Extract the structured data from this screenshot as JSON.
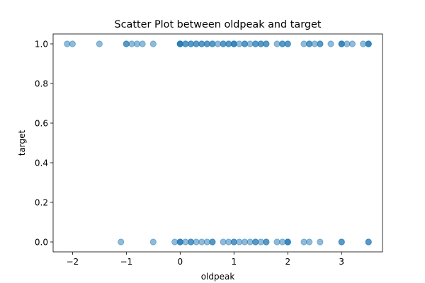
{
  "chart_data": {
    "type": "scatter",
    "title": "Scatter Plot between oldpeak and target",
    "xlabel": "oldpeak",
    "ylabel": "target",
    "xlim": [
      -2.36,
      3.76
    ],
    "ylim": [
      -0.05,
      1.05
    ],
    "xticks": [
      -2,
      -1,
      0,
      1,
      2,
      3
    ],
    "yticks": [
      0.0,
      0.2,
      0.4,
      0.6,
      0.8,
      1.0
    ],
    "ytick_labels": [
      "0.0",
      "0.2",
      "0.4",
      "0.6",
      "0.8",
      "1.0"
    ],
    "grid": false,
    "legend": false,
    "marker_color": "#1f77b4",
    "marker_alpha": 0.5,
    "series": [
      {
        "target": 1,
        "x": [
          -2.1,
          -2.0,
          -1.5,
          -1.0,
          -1.0,
          -0.9,
          -0.8,
          -0.7,
          -0.5,
          0.0,
          0.0,
          0.0,
          0.0,
          0.1,
          0.1,
          0.2,
          0.2,
          0.3,
          0.3,
          0.4,
          0.4,
          0.5,
          0.5,
          0.6,
          0.6,
          0.7,
          0.8,
          0.8,
          0.9,
          0.9,
          1.0,
          1.0,
          1.0,
          1.1,
          1.2,
          1.2,
          1.3,
          1.4,
          1.4,
          1.5,
          1.5,
          1.6,
          1.6,
          1.8,
          1.9,
          1.9,
          2.0,
          2.0,
          2.3,
          2.4,
          2.4,
          2.5,
          2.6,
          2.6,
          2.8,
          3.0,
          3.0,
          3.0,
          3.1,
          3.2,
          3.4,
          3.5,
          3.5,
          3.5
        ],
        "y": 1
      },
      {
        "target": 0,
        "x": [
          -1.1,
          -0.5,
          -0.1,
          0.0,
          0.0,
          0.0,
          0.1,
          0.2,
          0.2,
          0.3,
          0.4,
          0.5,
          0.6,
          0.6,
          0.8,
          0.9,
          1.0,
          1.0,
          1.1,
          1.2,
          1.3,
          1.4,
          1.4,
          1.5,
          1.6,
          1.6,
          1.8,
          1.9,
          2.0,
          2.0,
          2.0,
          2.3,
          2.4,
          2.6,
          3.0,
          3.0,
          3.5,
          3.5
        ],
        "y": 0
      }
    ]
  }
}
